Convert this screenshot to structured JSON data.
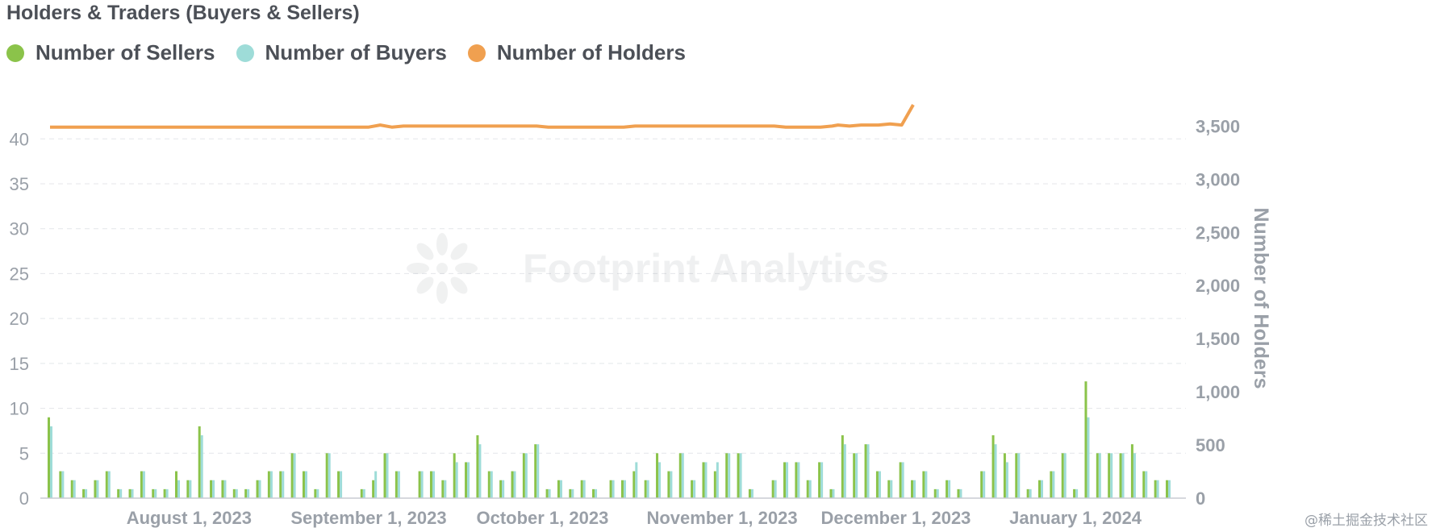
{
  "chart_data": {
    "type": "bar+line",
    "title": "Holders & Traders (Buyers & Sellers)",
    "legend_position": "top-left",
    "grid": true,
    "x_axis": {
      "start": "2023-07-08",
      "end": "2024-01-17",
      "ticks": [
        {
          "date": "2023-08-01",
          "label": "August 1, 2023"
        },
        {
          "date": "2023-09-01",
          "label": "September 1, 2023"
        },
        {
          "date": "2023-10-01",
          "label": "October 1, 2023"
        },
        {
          "date": "2023-11-01",
          "label": "November 1, 2023"
        },
        {
          "date": "2023-12-01",
          "label": "December 1, 2023"
        },
        {
          "date": "2024-01-01",
          "label": "January 1, 2024"
        }
      ]
    },
    "y_left": {
      "ylim": [
        0,
        42
      ],
      "ticks": [
        0,
        5,
        10,
        15,
        20,
        25,
        30,
        35,
        40
      ]
    },
    "y_right": {
      "label": "Number of Holders",
      "ylim": [
        0,
        3700
      ],
      "ticks": [
        0,
        500,
        1000,
        1500,
        2000,
        2500,
        3000,
        3500
      ],
      "tick_labels": [
        "0",
        "500",
        "1,000",
        "1,500",
        "2,000",
        "2,500",
        "3,000",
        "3,500"
      ]
    },
    "series": [
      {
        "name": "Number of Sellers",
        "type": "bar",
        "axis": "left",
        "color": "#8bc34a",
        "points": [
          [
            "2023-07-08",
            9
          ],
          [
            "2023-07-10",
            3
          ],
          [
            "2023-07-12",
            2
          ],
          [
            "2023-07-14",
            1
          ],
          [
            "2023-07-16",
            2
          ],
          [
            "2023-07-18",
            3
          ],
          [
            "2023-07-20",
            1
          ],
          [
            "2023-07-22",
            1
          ],
          [
            "2023-07-24",
            3
          ],
          [
            "2023-07-26",
            1
          ],
          [
            "2023-07-28",
            1
          ],
          [
            "2023-07-30",
            3
          ],
          [
            "2023-08-01",
            2
          ],
          [
            "2023-08-03",
            8
          ],
          [
            "2023-08-05",
            2
          ],
          [
            "2023-08-07",
            2
          ],
          [
            "2023-08-09",
            1
          ],
          [
            "2023-08-11",
            1
          ],
          [
            "2023-08-13",
            2
          ],
          [
            "2023-08-15",
            3
          ],
          [
            "2023-08-17",
            3
          ],
          [
            "2023-08-19",
            5
          ],
          [
            "2023-08-21",
            3
          ],
          [
            "2023-08-23",
            1
          ],
          [
            "2023-08-25",
            5
          ],
          [
            "2023-08-27",
            3
          ],
          [
            "2023-08-31",
            1
          ],
          [
            "2023-09-02",
            2
          ],
          [
            "2023-09-04",
            5
          ],
          [
            "2023-09-06",
            3
          ],
          [
            "2023-09-10",
            3
          ],
          [
            "2023-09-12",
            3
          ],
          [
            "2023-09-14",
            2
          ],
          [
            "2023-09-16",
            5
          ],
          [
            "2023-09-18",
            4
          ],
          [
            "2023-09-20",
            7
          ],
          [
            "2023-09-22",
            3
          ],
          [
            "2023-09-24",
            2
          ],
          [
            "2023-09-26",
            3
          ],
          [
            "2023-09-28",
            5
          ],
          [
            "2023-09-30",
            6
          ],
          [
            "2023-10-02",
            1
          ],
          [
            "2023-10-04",
            2
          ],
          [
            "2023-10-06",
            1
          ],
          [
            "2023-10-08",
            2
          ],
          [
            "2023-10-10",
            1
          ],
          [
            "2023-10-13",
            2
          ],
          [
            "2023-10-15",
            2
          ],
          [
            "2023-10-17",
            3
          ],
          [
            "2023-10-19",
            2
          ],
          [
            "2023-10-21",
            5
          ],
          [
            "2023-10-23",
            3
          ],
          [
            "2023-10-25",
            5
          ],
          [
            "2023-10-27",
            2
          ],
          [
            "2023-10-29",
            4
          ],
          [
            "2023-10-31",
            3
          ],
          [
            "2023-11-02",
            5
          ],
          [
            "2023-11-04",
            5
          ],
          [
            "2023-11-06",
            1
          ],
          [
            "2023-11-10",
            2
          ],
          [
            "2023-11-12",
            4
          ],
          [
            "2023-11-14",
            4
          ],
          [
            "2023-11-16",
            2
          ],
          [
            "2023-11-18",
            4
          ],
          [
            "2023-11-20",
            1
          ],
          [
            "2023-11-22",
            7
          ],
          [
            "2023-11-24",
            5
          ],
          [
            "2023-11-26",
            6
          ],
          [
            "2023-11-28",
            3
          ],
          [
            "2023-11-30",
            2
          ],
          [
            "2023-12-02",
            4
          ],
          [
            "2023-12-04",
            2
          ],
          [
            "2023-12-06",
            3
          ],
          [
            "2023-12-08",
            1
          ],
          [
            "2023-12-10",
            2
          ],
          [
            "2023-12-12",
            1
          ],
          [
            "2023-12-16",
            3
          ],
          [
            "2023-12-18",
            7
          ],
          [
            "2023-12-20",
            5
          ],
          [
            "2023-12-22",
            5
          ],
          [
            "2023-12-24",
            1
          ],
          [
            "2023-12-26",
            2
          ],
          [
            "2023-12-28",
            3
          ],
          [
            "2023-12-30",
            5
          ],
          [
            "2024-01-01",
            1
          ],
          [
            "2024-01-03",
            13
          ],
          [
            "2024-01-05",
            5
          ],
          [
            "2024-01-07",
            5
          ],
          [
            "2024-01-09",
            5
          ],
          [
            "2024-01-11",
            6
          ],
          [
            "2024-01-13",
            3
          ],
          [
            "2024-01-15",
            2
          ],
          [
            "2024-01-17",
            2
          ]
        ]
      },
      {
        "name": "Number of Buyers",
        "type": "bar",
        "axis": "left",
        "color": "#9edcd8",
        "points": [
          [
            "2023-07-08",
            8
          ],
          [
            "2023-07-10",
            3
          ],
          [
            "2023-07-12",
            2
          ],
          [
            "2023-07-14",
            1
          ],
          [
            "2023-07-16",
            2
          ],
          [
            "2023-07-18",
            3
          ],
          [
            "2023-07-20",
            1
          ],
          [
            "2023-07-22",
            1
          ],
          [
            "2023-07-24",
            3
          ],
          [
            "2023-07-26",
            1
          ],
          [
            "2023-07-28",
            1
          ],
          [
            "2023-07-30",
            2
          ],
          [
            "2023-08-01",
            2
          ],
          [
            "2023-08-03",
            7
          ],
          [
            "2023-08-05",
            2
          ],
          [
            "2023-08-07",
            2
          ],
          [
            "2023-08-09",
            1
          ],
          [
            "2023-08-11",
            1
          ],
          [
            "2023-08-13",
            2
          ],
          [
            "2023-08-15",
            3
          ],
          [
            "2023-08-17",
            3
          ],
          [
            "2023-08-19",
            5
          ],
          [
            "2023-08-21",
            3
          ],
          [
            "2023-08-23",
            1
          ],
          [
            "2023-08-25",
            5
          ],
          [
            "2023-08-27",
            3
          ],
          [
            "2023-08-31",
            1
          ],
          [
            "2023-09-02",
            3
          ],
          [
            "2023-09-04",
            5
          ],
          [
            "2023-09-06",
            3
          ],
          [
            "2023-09-10",
            3
          ],
          [
            "2023-09-12",
            3
          ],
          [
            "2023-09-14",
            2
          ],
          [
            "2023-09-16",
            4
          ],
          [
            "2023-09-18",
            4
          ],
          [
            "2023-09-20",
            6
          ],
          [
            "2023-09-22",
            3
          ],
          [
            "2023-09-24",
            2
          ],
          [
            "2023-09-26",
            3
          ],
          [
            "2023-09-28",
            5
          ],
          [
            "2023-09-30",
            6
          ],
          [
            "2023-10-02",
            1
          ],
          [
            "2023-10-04",
            2
          ],
          [
            "2023-10-06",
            1
          ],
          [
            "2023-10-08",
            2
          ],
          [
            "2023-10-10",
            1
          ],
          [
            "2023-10-13",
            2
          ],
          [
            "2023-10-15",
            2
          ],
          [
            "2023-10-17",
            4
          ],
          [
            "2023-10-19",
            2
          ],
          [
            "2023-10-21",
            4
          ],
          [
            "2023-10-23",
            3
          ],
          [
            "2023-10-25",
            5
          ],
          [
            "2023-10-27",
            2
          ],
          [
            "2023-10-29",
            4
          ],
          [
            "2023-10-31",
            4
          ],
          [
            "2023-11-02",
            5
          ],
          [
            "2023-11-04",
            5
          ],
          [
            "2023-11-06",
            1
          ],
          [
            "2023-11-10",
            2
          ],
          [
            "2023-11-12",
            4
          ],
          [
            "2023-11-14",
            4
          ],
          [
            "2023-11-16",
            2
          ],
          [
            "2023-11-18",
            4
          ],
          [
            "2023-11-20",
            1
          ],
          [
            "2023-11-22",
            6
          ],
          [
            "2023-11-24",
            5
          ],
          [
            "2023-11-26",
            6
          ],
          [
            "2023-11-28",
            3
          ],
          [
            "2023-11-30",
            2
          ],
          [
            "2023-12-02",
            4
          ],
          [
            "2023-12-04",
            2
          ],
          [
            "2023-12-06",
            3
          ],
          [
            "2023-12-08",
            1
          ],
          [
            "2023-12-10",
            2
          ],
          [
            "2023-12-12",
            1
          ],
          [
            "2023-12-16",
            3
          ],
          [
            "2023-12-18",
            6
          ],
          [
            "2023-12-20",
            4
          ],
          [
            "2023-12-22",
            5
          ],
          [
            "2023-12-24",
            1
          ],
          [
            "2023-12-26",
            2
          ],
          [
            "2023-12-28",
            3
          ],
          [
            "2023-12-30",
            5
          ],
          [
            "2024-01-01",
            1
          ],
          [
            "2024-01-03",
            9
          ],
          [
            "2024-01-05",
            5
          ],
          [
            "2024-01-07",
            5
          ],
          [
            "2024-01-09",
            5
          ],
          [
            "2024-01-11",
            5
          ],
          [
            "2024-01-13",
            3
          ],
          [
            "2024-01-15",
            2
          ],
          [
            "2024-01-17",
            2
          ]
        ]
      },
      {
        "name": "Number of Holders",
        "type": "line",
        "axis": "right",
        "color": "#f0a050",
        "points": [
          [
            "2023-07-08",
            3490
          ],
          [
            "2023-08-15",
            3490
          ],
          [
            "2023-09-01",
            3490
          ],
          [
            "2023-09-03",
            3510
          ],
          [
            "2023-09-05",
            3490
          ],
          [
            "2023-09-07",
            3500
          ],
          [
            "2023-09-30",
            3500
          ],
          [
            "2023-10-02",
            3490
          ],
          [
            "2023-10-15",
            3490
          ],
          [
            "2023-10-17",
            3500
          ],
          [
            "2023-11-10",
            3500
          ],
          [
            "2023-11-12",
            3490
          ],
          [
            "2023-11-18",
            3490
          ],
          [
            "2023-11-20",
            3500
          ],
          [
            "2023-11-21",
            3510
          ],
          [
            "2023-11-23",
            3500
          ],
          [
            "2023-11-25",
            3510
          ],
          [
            "2023-11-28",
            3510
          ],
          [
            "2023-11-30",
            3520
          ],
          [
            "2023-12-02",
            3510
          ],
          [
            "2023-12-04",
            3700
          ]
        ]
      }
    ]
  },
  "watermark": "Footprint Analytics",
  "credit": "@稀土掘金技术社区"
}
